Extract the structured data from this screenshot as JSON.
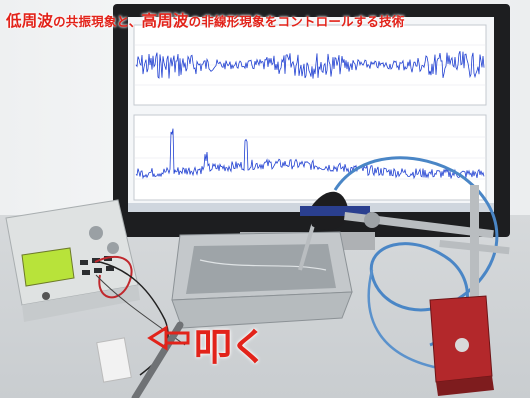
{
  "caption": {
    "part1": "低周波",
    "part2": "の共振現象と、",
    "part3": "高周波",
    "part4": "の非線形現象をコントロールする技術"
  },
  "impact_label": "叩く",
  "colors": {
    "caption": "#e2231a",
    "waveform": "#1f3fd1",
    "generator_display": "#b8e33a",
    "cable": "#4a86c6",
    "magnet_base": "#b3282b"
  }
}
